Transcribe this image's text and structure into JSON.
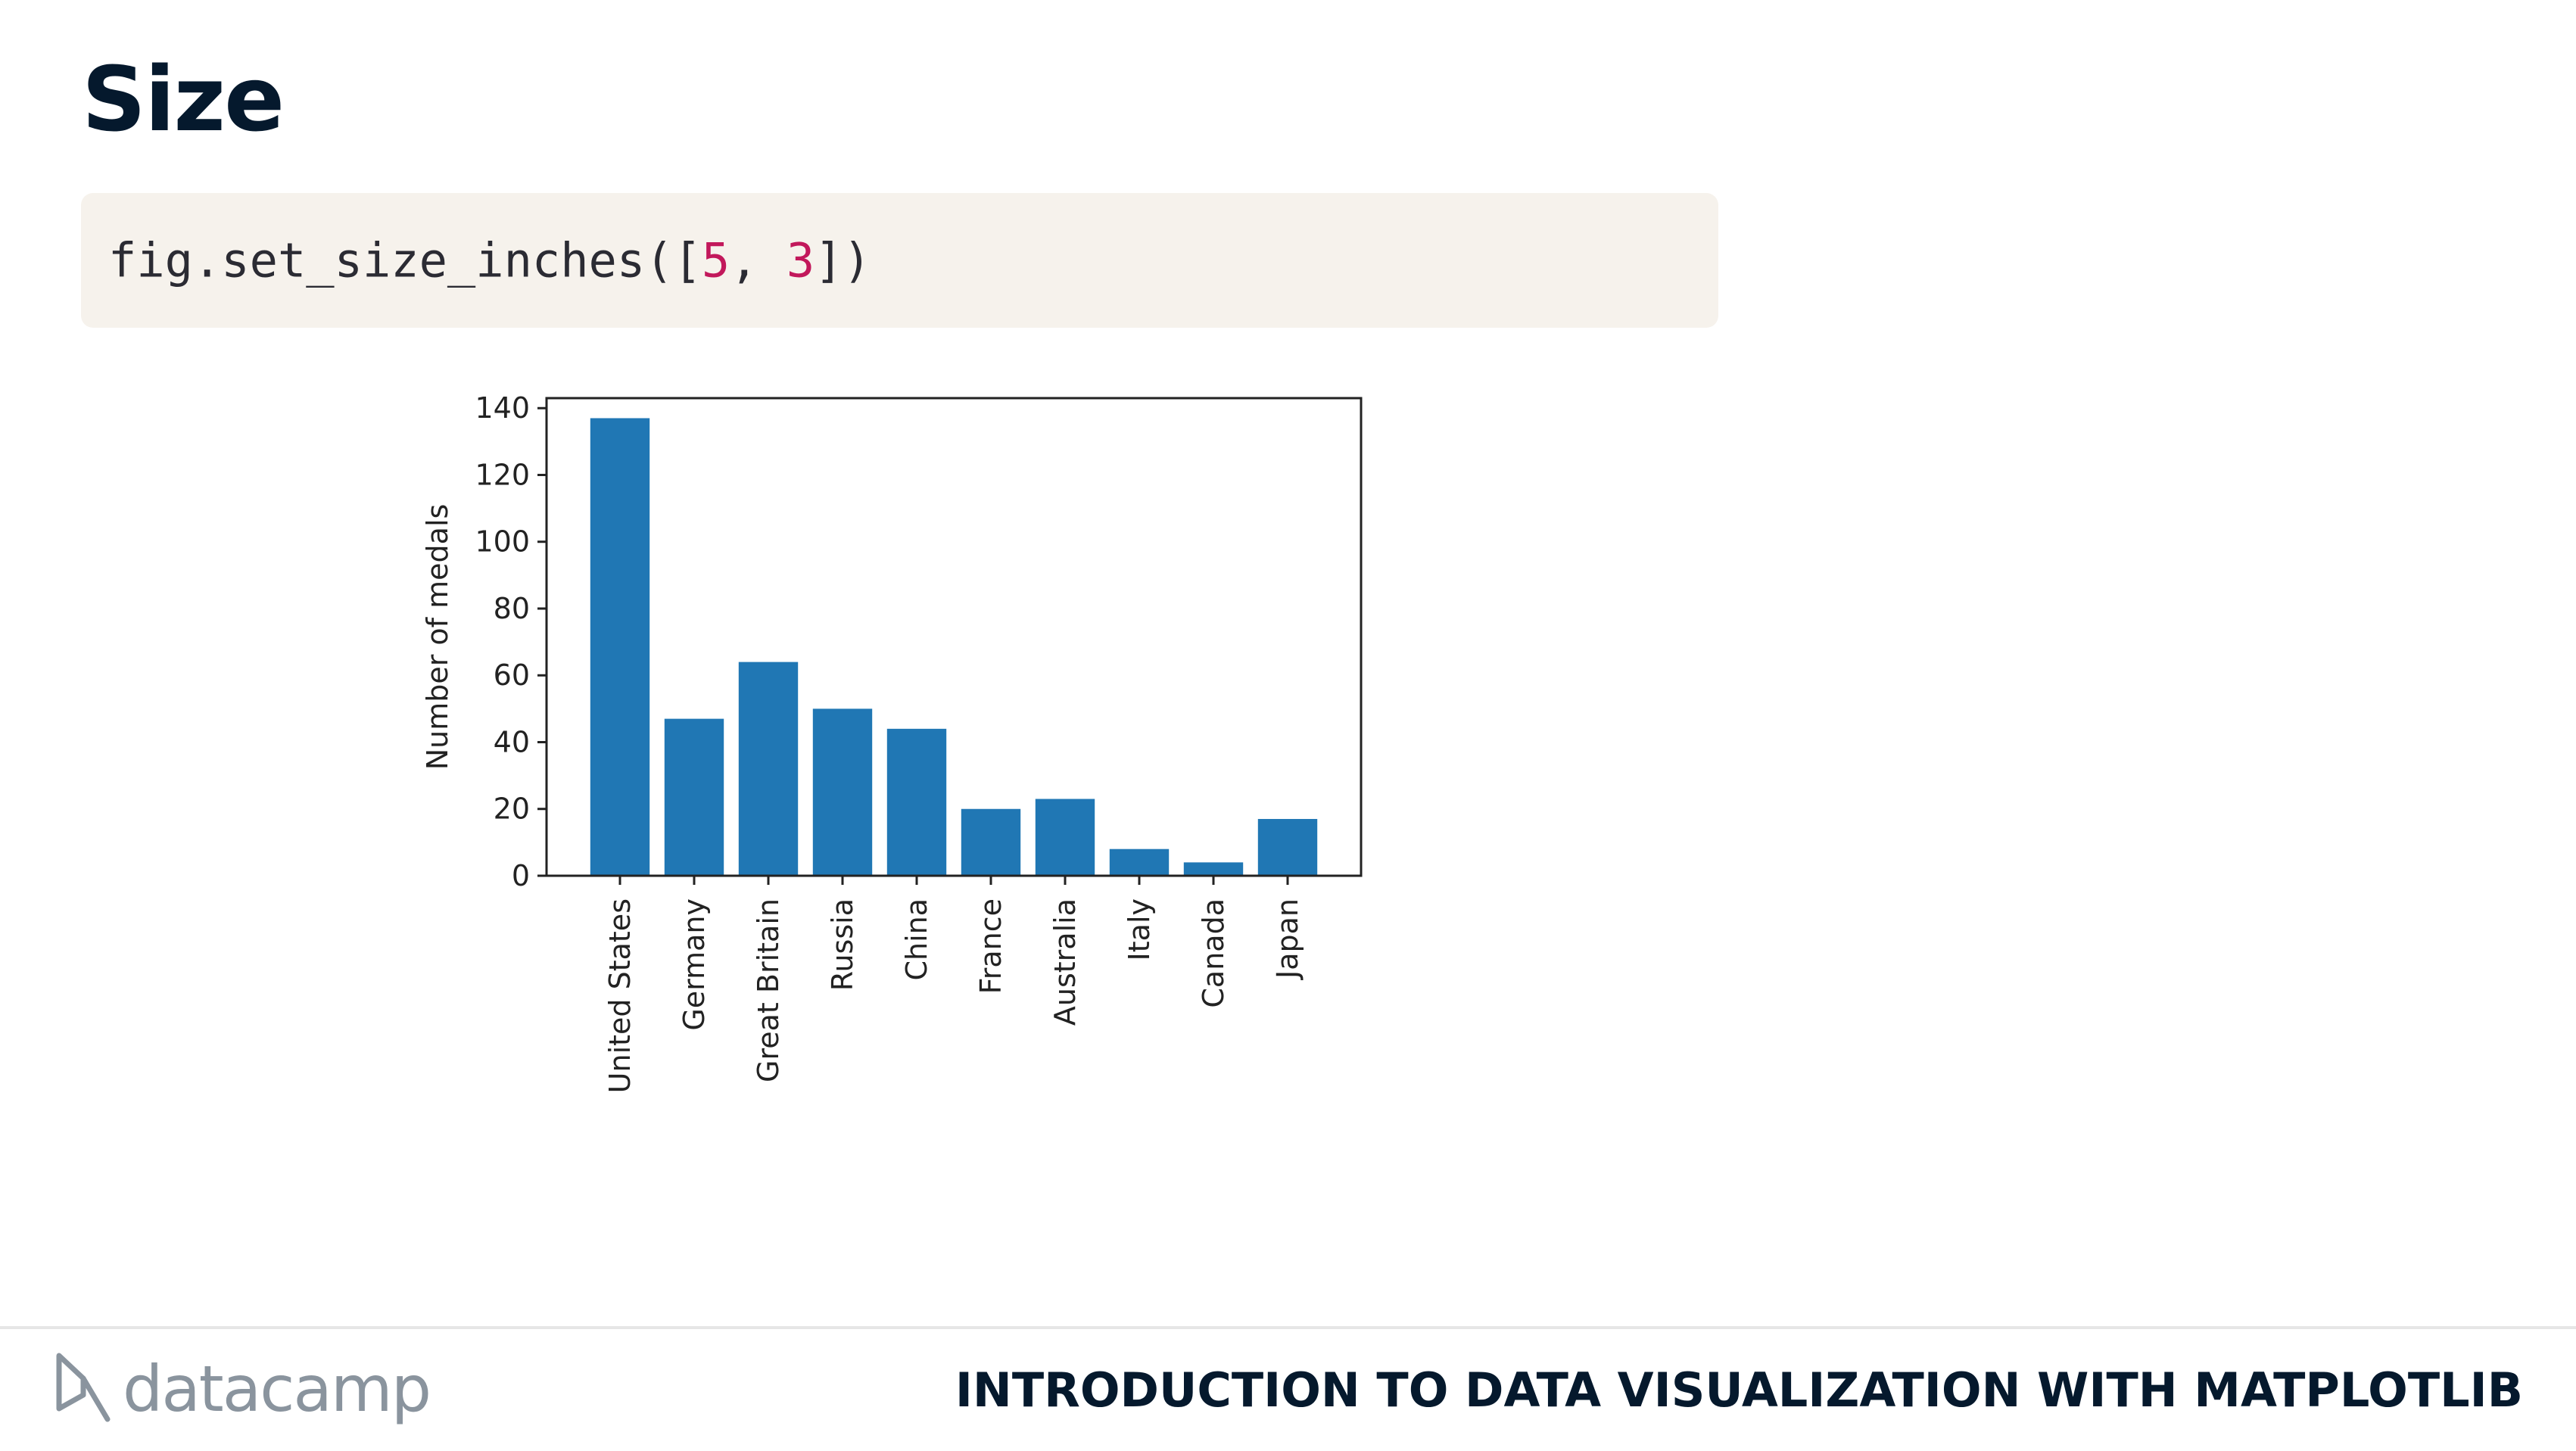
{
  "slide": {
    "title": "Size",
    "code": {
      "prefix": "fig.set_size_inches([",
      "arg1": "5",
      "sep": ", ",
      "arg2": "3",
      "suffix": "])"
    }
  },
  "footer": {
    "logo_text": "datacamp",
    "course_title": "INTRODUCTION TO DATA VISUALIZATION WITH MATPLOTLIB"
  },
  "colors": {
    "bar": "#2077b4",
    "title": "#05192d",
    "code_bg": "#f6f2ec",
    "code_number": "#c2185b"
  },
  "chart_data": {
    "type": "bar",
    "categories": [
      "United States",
      "Germany",
      "Great Britain",
      "Russia",
      "China",
      "France",
      "Australia",
      "Italy",
      "Canada",
      "Japan"
    ],
    "values": [
      137,
      47,
      64,
      50,
      44,
      20,
      23,
      8,
      4,
      17
    ],
    "xlabel": "",
    "ylabel": "Number of medals",
    "ylim": [
      0,
      143
    ],
    "yticks": [
      0,
      20,
      40,
      60,
      80,
      100,
      120,
      140
    ],
    "grid": false,
    "legend": "none"
  }
}
